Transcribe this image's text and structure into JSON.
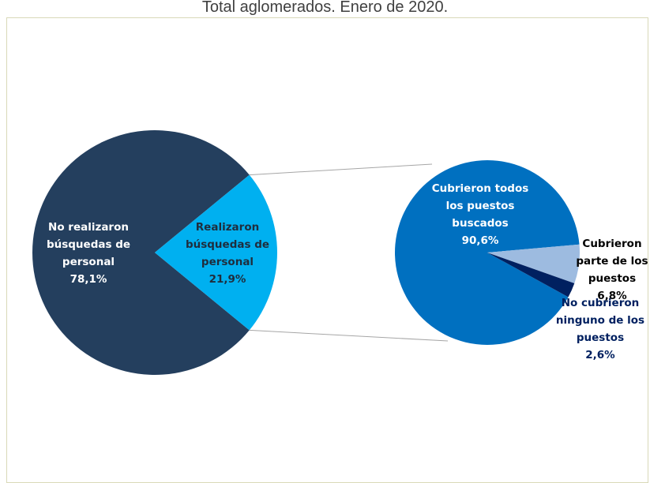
{
  "chart_data": [
    {
      "type": "pie",
      "title": "Total aglomerados. Enero de 2020.",
      "slices": [
        {
          "label_lines": [
            "No realizaron",
            "búsquedas de",
            "personal"
          ],
          "value_text": "78,1%",
          "value": 78.1,
          "color": "#243f5e",
          "label_color": "#ffffff"
        },
        {
          "label_lines": [
            "Realizaron",
            "búsquedas de",
            "personal"
          ],
          "value_text": "21,9%",
          "value": 21.9,
          "color": "#00b0f0",
          "label_color": "#1f2d3d"
        }
      ]
    },
    {
      "type": "pie",
      "slices": [
        {
          "label_lines": [
            "Cubrieron todos",
            "los puestos",
            "buscados"
          ],
          "value_text": "90,6%",
          "value": 90.6,
          "color": "#0070c0",
          "label_color": "#ffffff"
        },
        {
          "label_lines": [
            "Cubrieron",
            "parte de los",
            "puestos"
          ],
          "value_text": "6,8%",
          "value": 6.8,
          "color": "#9dbbe0",
          "label_color": "#000000"
        },
        {
          "label_lines": [
            "No cubrieron",
            "ninguno de los",
            "puestos"
          ],
          "value_text": "2,6%",
          "value": 2.6,
          "color": "#002060",
          "label_color": "#002060"
        }
      ]
    }
  ]
}
